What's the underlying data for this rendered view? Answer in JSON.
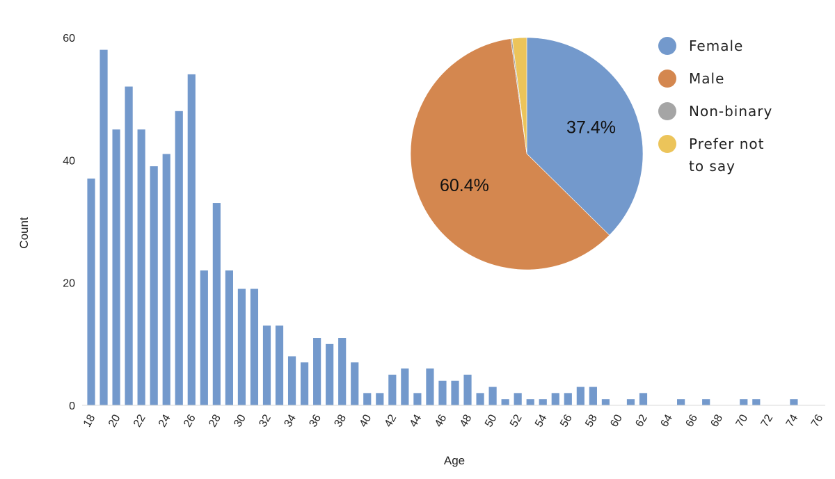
{
  "chart_data": [
    {
      "type": "bar",
      "xlabel": "Age",
      "ylabel": "Count",
      "ylim": [
        0,
        60
      ],
      "yticks": [
        0,
        20,
        40,
        60
      ],
      "grid": false,
      "color": "#7399cc",
      "x": [
        18,
        19,
        20,
        21,
        22,
        23,
        24,
        25,
        26,
        27,
        28,
        29,
        30,
        31,
        32,
        33,
        34,
        35,
        36,
        37,
        38,
        39,
        40,
        41,
        42,
        43,
        44,
        45,
        46,
        47,
        48,
        49,
        50,
        51,
        52,
        53,
        54,
        55,
        56,
        57,
        58,
        59,
        60,
        61,
        62,
        63,
        64,
        65,
        66,
        67,
        68,
        69,
        70,
        71,
        72,
        73,
        74,
        75,
        76
      ],
      "values": [
        37,
        58,
        45,
        52,
        45,
        39,
        41,
        48,
        54,
        22,
        33,
        22,
        19,
        19,
        13,
        13,
        8,
        7,
        11,
        10,
        11,
        7,
        2,
        2,
        5,
        6,
        2,
        6,
        4,
        4,
        5,
        2,
        3,
        1,
        2,
        1,
        1,
        2,
        2,
        3,
        3,
        1,
        0,
        1,
        2,
        0,
        0,
        1,
        0,
        1,
        0,
        0,
        1,
        1,
        0,
        0,
        1,
        0,
        0
      ],
      "xtick_labels": [
        "18",
        "20",
        "22",
        "24",
        "26",
        "28",
        "30",
        "32",
        "34",
        "36",
        "38",
        "40",
        "42",
        "44",
        "46",
        "48",
        "50",
        "52",
        "54",
        "56",
        "58",
        "60",
        "62",
        "64",
        "66",
        "68",
        "70",
        "72",
        "74",
        "76"
      ]
    },
    {
      "type": "pie",
      "legend_position": "right",
      "slices": [
        {
          "name": "Female",
          "value": 37.4,
          "label": "37.4%",
          "color": "#7399cc"
        },
        {
          "name": "Male",
          "value": 60.4,
          "label": "60.4%",
          "color": "#d4874f"
        },
        {
          "name": "Non-binary",
          "value": 0.2,
          "label": "",
          "color": "#a5a5a5"
        },
        {
          "name": "Prefer not to say",
          "value": 2.0,
          "label": "",
          "color": "#ecc45a"
        }
      ],
      "legend_lines": [
        [
          "Female"
        ],
        [
          "Male"
        ],
        [
          "Non-binary"
        ],
        [
          "Prefer not",
          "to say"
        ]
      ]
    }
  ]
}
